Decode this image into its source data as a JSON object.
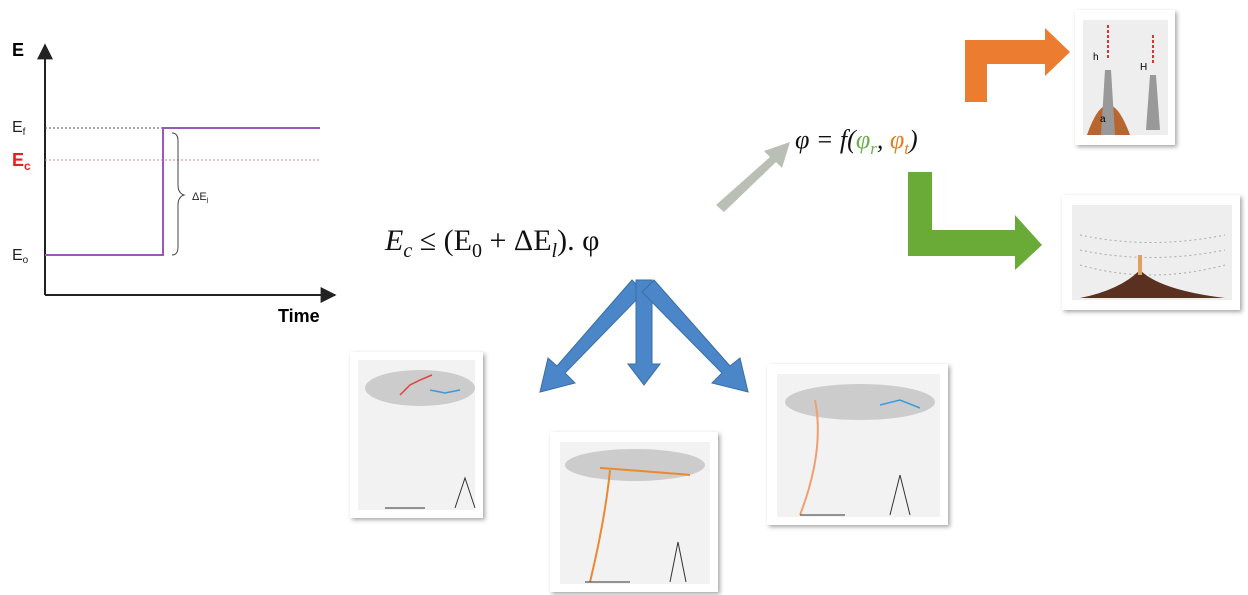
{
  "energy_plot": {
    "y_axis_label": "E",
    "x_axis_label": "Time",
    "levels": [
      {
        "label": "E",
        "sub": "f"
      },
      {
        "label": "E",
        "sub": "c"
      },
      {
        "label": "E",
        "sub": "o"
      }
    ],
    "delta_label": {
      "label": "ΔE",
      "sub": "l"
    }
  },
  "main_formula": {
    "parts": [
      "E",
      "c",
      " ≤ (E",
      "0",
      " +  ΔE",
      "l",
      "). φ"
    ]
  },
  "factor_formula": {
    "parts": [
      "φ = f(",
      "φ",
      "r",
      ", ",
      "φ",
      "t",
      ")"
    ]
  },
  "tower_thumbnail": {
    "labels": [
      "h",
      "H",
      "a"
    ]
  }
}
